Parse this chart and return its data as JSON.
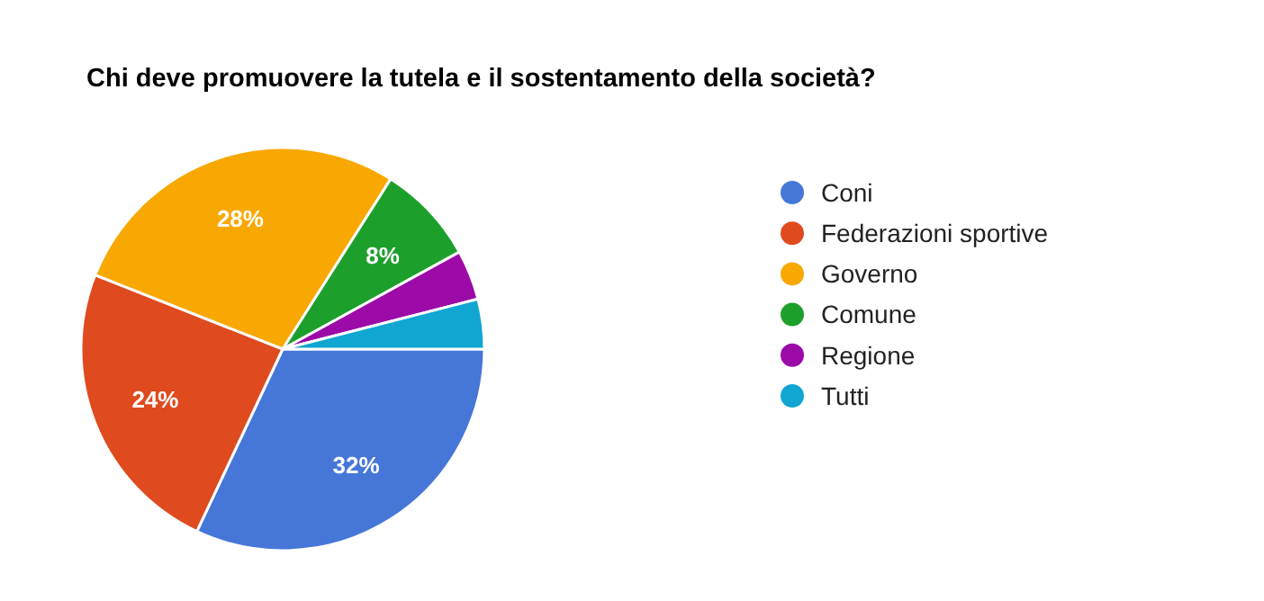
{
  "chart_data": {
    "type": "pie",
    "title": "Chi deve promuovere la tutela e il sostentamento della società?",
    "categories": [
      "Coni",
      "Federazioni sportive",
      "Governo",
      "Comune",
      "Regione",
      "Tutti"
    ],
    "values": [
      32,
      24,
      28,
      8,
      4,
      4
    ],
    "colors": [
      "#4677d8",
      "#df4a1f",
      "#f8a800",
      "#1d9f2c",
      "#9c0aa8",
      "#10a6d2"
    ],
    "value_labels": [
      "32%",
      "24%",
      "28%",
      "8%",
      null,
      null
    ],
    "legend": "right"
  }
}
